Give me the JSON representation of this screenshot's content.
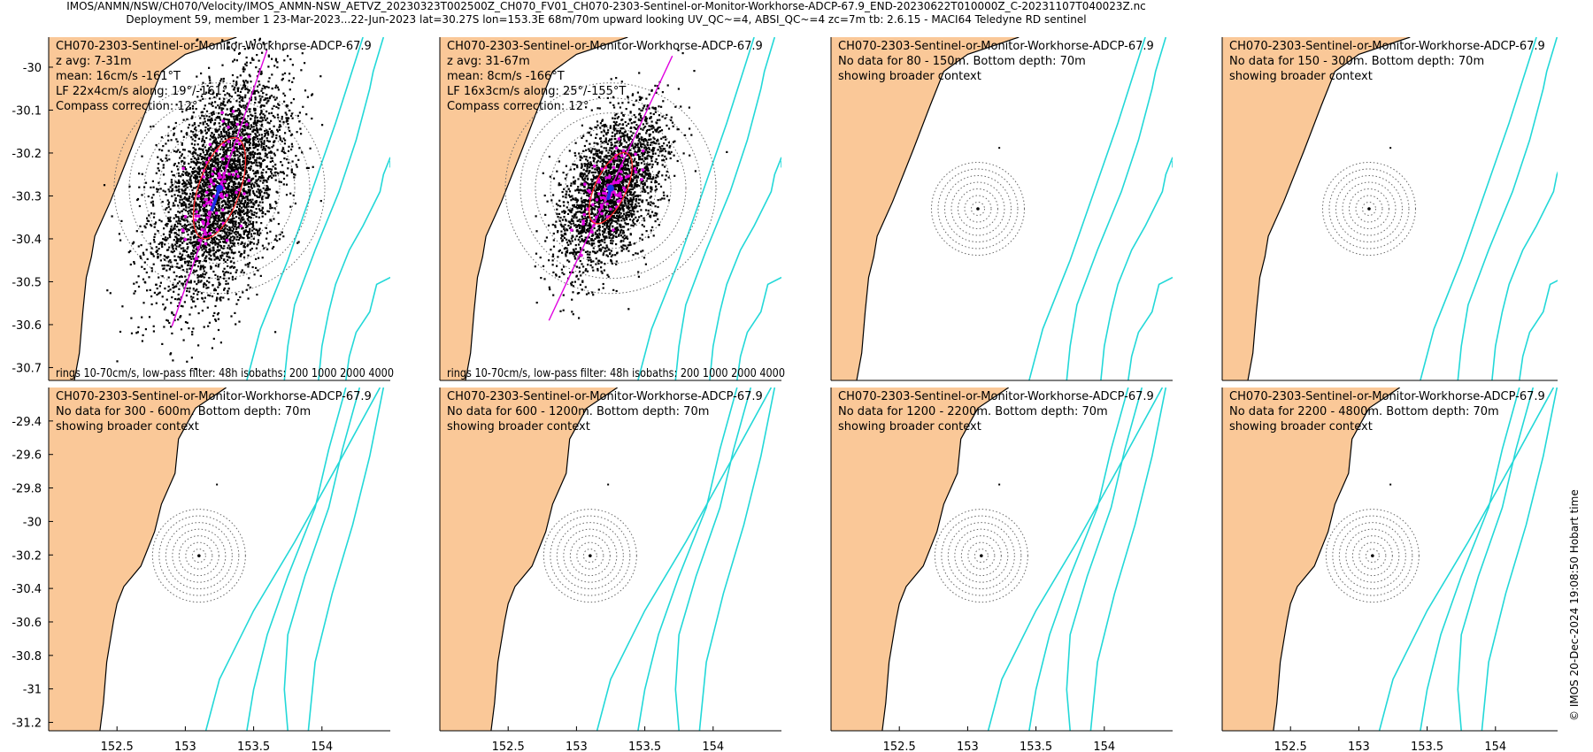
{
  "header": {
    "line1": "IMOS/ANMN/NSW/CH070/Velocity/IMOS_ANMN-NSW_AETVZ_20230323T002500Z_CH070_FV01_CH070-2303-Sentinel-or-Monitor-Workhorse-ADCP-67.9_END-20230622T010000Z_C-20231107T040023Z.nc",
    "line2": "Deployment 59, member 1 23-Mar-2023...22-Jun-2023 lat=30.27S lon=153.3E 68m/70m upward looking UV_QC~=4, ABSI_QC~=4 zc=7m tb: 2.6.15 - MACI64 Teledyne RD sentinel"
  },
  "watermark": "© IMOS 20-Dec-2024 19:08:50 Hobart time",
  "colors": {
    "land": "#fac898",
    "isobath": "#22d8d8",
    "principal_axis": "#e000e0",
    "lowpass_points": "#e000e0",
    "mean_vector": "#1a2ee8",
    "ellipse": "#ff2a2a",
    "scatter": "#000000",
    "rings": "#666666"
  },
  "chart_data": [
    {
      "type": "scatter",
      "panel": 1,
      "title": "CH070-2303-Sentinel-or-Monitor-Workhorse-ADCP-67.9",
      "lines": [
        "z avg: 7-31m",
        "mean: 16cm/s -161°T",
        "LF 22x4cm/s along: 19°/-161°",
        "Compass correction: 12°"
      ],
      "footer": "rings 10-70cm/s, low-pass filter: 48h isobaths: 200 1000 2000 4000",
      "ylim": [
        -30.73,
        -29.93
      ],
      "yticks": [
        -30,
        -30.1,
        -30.2,
        -30.3,
        -30.4,
        -30.5,
        -30.6,
        -30.7
      ],
      "ytick_labels": [
        "-30",
        "-30.1",
        "-30.2",
        "-30.3",
        "-30.4",
        "-30.5",
        "-30.6",
        "-30.7"
      ],
      "ring_speeds_cm_s": [
        10,
        20,
        30,
        40,
        50,
        60,
        70
      ],
      "mean_speed_cm_s": 16,
      "mean_dir_deg": -161,
      "lf_major_cm_s": 22,
      "lf_minor_cm_s": 4,
      "axis_dir_deg": 19
    },
    {
      "type": "scatter",
      "panel": 2,
      "title": "CH070-2303-Sentinel-or-Monitor-Workhorse-ADCP-67.9",
      "lines": [
        "z avg: 31-67m",
        "mean: 8cm/s -166°T",
        "LF 16x3cm/s along: 25°/-155°T",
        "Compass correction: 12°"
      ],
      "footer": "rings 10-70cm/s, low-pass filter: 48h isobaths: 200 1000 2000 4000",
      "ring_speeds_cm_s": [
        10,
        20,
        30,
        40,
        50,
        60,
        70
      ],
      "mean_speed_cm_s": 8,
      "mean_dir_deg": -166,
      "lf_major_cm_s": 16,
      "lf_minor_cm_s": 3,
      "axis_dir_deg": 25
    },
    {
      "type": "map",
      "panel": 3,
      "title": "CH070-2303-Sentinel-or-Monitor-Workhorse-ADCP-67.9",
      "lines": [
        "No data for 80 - 150m. Bottom depth: 70m",
        "showing broader context"
      ]
    },
    {
      "type": "map",
      "panel": 4,
      "title": "CH070-2303-Sentinel-or-Monitor-Workhorse-ADCP-67.9",
      "lines": [
        "No data for 150 - 300m. Bottom depth: 70m",
        "showing broader context"
      ]
    },
    {
      "type": "map",
      "panel": 5,
      "title": "CH070-2303-Sentinel-or-Monitor-Workhorse-ADCP-67.9",
      "lines": [
        "No data for 300 - 600m. Bottom depth: 70m",
        "showing broader context"
      ],
      "ylim": [
        -31.25,
        -29.2
      ],
      "yticks": [
        -29.4,
        -29.6,
        -29.8,
        -30,
        -30.2,
        -30.4,
        -30.6,
        -30.8,
        -31,
        -31.2
      ],
      "ytick_labels": [
        "-29.4",
        "-29.6",
        "-29.8",
        "-30",
        "-30.2",
        "-30.4",
        "-30.6",
        "-30.8",
        "-31",
        "-31.2"
      ]
    },
    {
      "type": "map",
      "panel": 6,
      "title": "CH070-2303-Sentinel-or-Monitor-Workhorse-ADCP-67.9",
      "lines": [
        "No data for 600 - 1200m. Bottom depth: 70m",
        "showing broader context"
      ]
    },
    {
      "type": "map",
      "panel": 7,
      "title": "CH070-2303-Sentinel-or-Monitor-Workhorse-ADCP-67.9",
      "lines": [
        "No data for 1200 - 2200m. Bottom depth: 70m",
        "showing broader context"
      ]
    },
    {
      "type": "map",
      "panel": 8,
      "title": "CH070-2303-Sentinel-or-Monitor-Workhorse-ADCP-67.9",
      "lines": [
        "No data for 2200 - 4800m. Bottom depth: 70m",
        "showing broader context"
      ]
    }
  ],
  "x_axis": {
    "xlim": [
      152.0,
      154.5
    ],
    "xticks": [
      152.5,
      153,
      153.5,
      154
    ],
    "xtick_labels": [
      "152.5",
      "153",
      "153.5",
      "154"
    ]
  }
}
